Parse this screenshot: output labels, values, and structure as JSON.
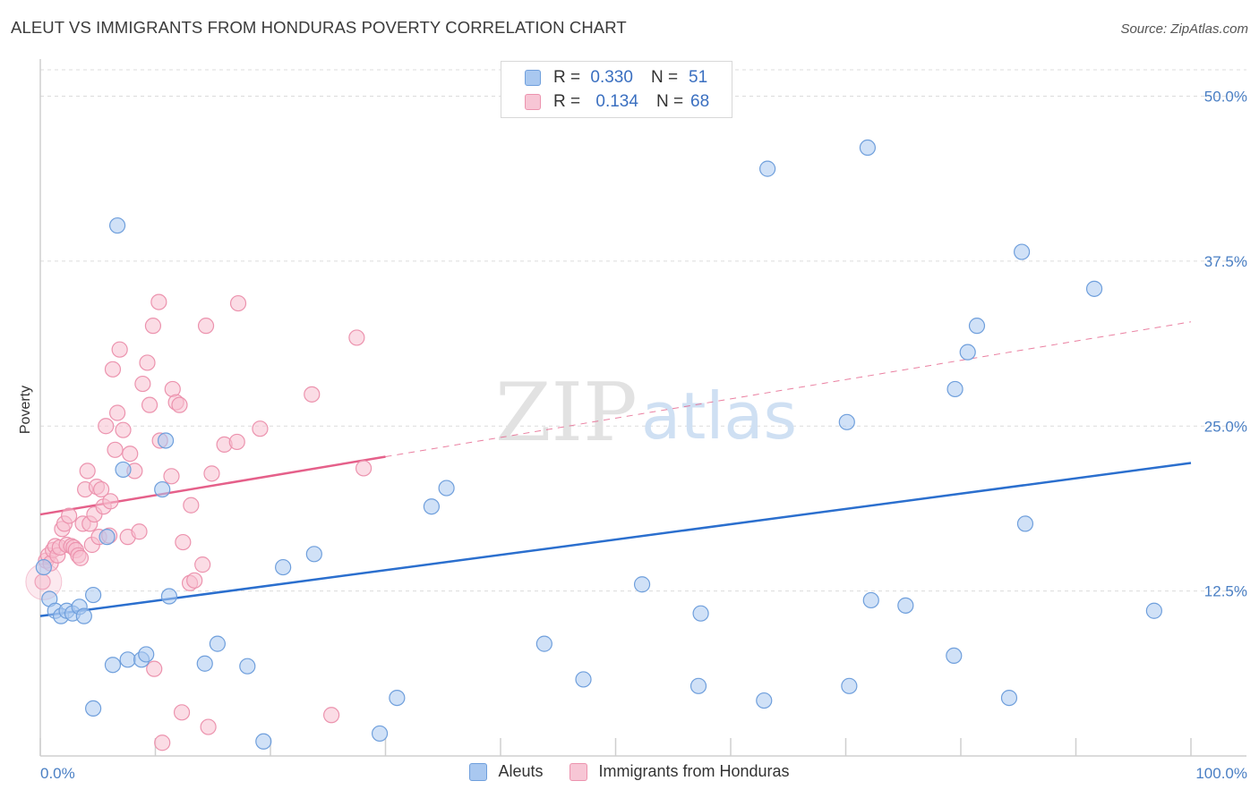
{
  "title": "ALEUT VS IMMIGRANTS FROM HONDURAS POVERTY CORRELATION CHART",
  "source": "Source: ZipAtlas.com",
  "watermark": {
    "part1": "ZIP",
    "part2": "atlas"
  },
  "legend": {
    "rows": [
      {
        "r_label": "R =",
        "r_value": "0.330",
        "n_label": "N =",
        "n_value": "51"
      },
      {
        "r_label": "R =",
        "r_value": "0.134",
        "n_label": "N =",
        "n_value": "68"
      }
    ]
  },
  "bottom_legend": {
    "series1": "Aleuts",
    "series2": "Immigrants from Honduras"
  },
  "colors": {
    "aleut_fill": "#a9c8f0",
    "aleut_stroke": "#6f9fdc",
    "aleut_line": "#2b6fce",
    "honduras_fill": "#f7bfd0",
    "honduras_stroke": "#ec93ae",
    "honduras_line": "#e5608a",
    "tick_text": "#4a7fc4",
    "grid": "#dcdcdc"
  },
  "chart_data": {
    "type": "scatter",
    "title": "ALEUT VS IMMIGRANTS FROM HONDURAS POVERTY CORRELATION CHART",
    "xlabel": "",
    "ylabel": "Poverty",
    "xlim": [
      0,
      100
    ],
    "ylim": [
      0,
      52
    ],
    "x_tick_labels": [
      "0.0%",
      "100.0%"
    ],
    "y_ticks": [
      12.5,
      25.0,
      37.5,
      50.0
    ],
    "y_tick_labels": [
      "12.5%",
      "25.0%",
      "37.5%",
      "50.0%"
    ],
    "grid": true,
    "legend_position": "top-center",
    "series": [
      {
        "name": "Aleuts",
        "r": 0.33,
        "n": 51,
        "trend": {
          "x0": 0,
          "y0": 10.6,
          "x1": 100,
          "y1": 22.2,
          "dashed_from": null
        },
        "points": [
          [
            0.3,
            14.3
          ],
          [
            0.8,
            11.9
          ],
          [
            1.3,
            11.0
          ],
          [
            1.8,
            10.6
          ],
          [
            2.3,
            11.0
          ],
          [
            2.8,
            10.8
          ],
          [
            3.4,
            11.3
          ],
          [
            3.8,
            10.6
          ],
          [
            4.6,
            12.2
          ],
          [
            4.6,
            3.6
          ],
          [
            5.8,
            16.6
          ],
          [
            6.3,
            6.9
          ],
          [
            6.7,
            40.2
          ],
          [
            7.2,
            21.7
          ],
          [
            7.6,
            7.3
          ],
          [
            8.8,
            7.3
          ],
          [
            9.2,
            7.7
          ],
          [
            10.6,
            20.2
          ],
          [
            10.9,
            23.9
          ],
          [
            11.2,
            12.1
          ],
          [
            14.3,
            7.0
          ],
          [
            15.4,
            8.5
          ],
          [
            18.0,
            6.8
          ],
          [
            19.4,
            1.1
          ],
          [
            21.1,
            14.3
          ],
          [
            23.8,
            15.3
          ],
          [
            29.5,
            1.7
          ],
          [
            31.0,
            4.4
          ],
          [
            34.0,
            18.9
          ],
          [
            35.3,
            20.3
          ],
          [
            43.8,
            8.5
          ],
          [
            47.2,
            5.8
          ],
          [
            52.3,
            13.0
          ],
          [
            57.2,
            5.3
          ],
          [
            57.4,
            10.8
          ],
          [
            62.9,
            4.2
          ],
          [
            63.2,
            44.5
          ],
          [
            70.1,
            25.3
          ],
          [
            70.3,
            5.3
          ],
          [
            71.9,
            46.1
          ],
          [
            72.2,
            11.8
          ],
          [
            75.2,
            11.4
          ],
          [
            79.4,
            7.6
          ],
          [
            79.5,
            27.8
          ],
          [
            80.6,
            30.6
          ],
          [
            81.4,
            32.6
          ],
          [
            84.2,
            4.4
          ],
          [
            85.3,
            38.2
          ],
          [
            85.6,
            17.6
          ],
          [
            91.6,
            35.4
          ],
          [
            96.8,
            11.0
          ]
        ]
      },
      {
        "name": "Immigrants from Honduras",
        "r": 0.134,
        "n": 68,
        "trend": {
          "x0": 0,
          "y0": 18.3,
          "x1": 100,
          "y1": 32.9,
          "solid_to_x": 30
        },
        "points": [
          [
            0.2,
            13.2
          ],
          [
            0.5,
            14.8
          ],
          [
            0.7,
            15.2
          ],
          [
            0.9,
            14.6
          ],
          [
            1.1,
            15.6
          ],
          [
            1.3,
            15.9
          ],
          [
            1.5,
            15.2
          ],
          [
            1.7,
            15.8
          ],
          [
            1.9,
            17.2
          ],
          [
            2.1,
            17.6
          ],
          [
            2.3,
            16.0
          ],
          [
            2.5,
            18.2
          ],
          [
            2.7,
            15.9
          ],
          [
            2.9,
            15.8
          ],
          [
            3.1,
            15.6
          ],
          [
            3.3,
            15.2
          ],
          [
            3.5,
            15.0
          ],
          [
            3.7,
            17.6
          ],
          [
            3.9,
            20.2
          ],
          [
            4.1,
            21.6
          ],
          [
            4.3,
            17.6
          ],
          [
            4.5,
            16.0
          ],
          [
            4.7,
            18.3
          ],
          [
            4.9,
            20.4
          ],
          [
            5.1,
            16.6
          ],
          [
            5.3,
            20.2
          ],
          [
            5.5,
            18.9
          ],
          [
            5.7,
            25.0
          ],
          [
            6.0,
            16.7
          ],
          [
            6.1,
            19.3
          ],
          [
            6.3,
            29.3
          ],
          [
            6.5,
            23.2
          ],
          [
            6.7,
            26.0
          ],
          [
            6.9,
            30.8
          ],
          [
            7.2,
            24.7
          ],
          [
            7.6,
            16.6
          ],
          [
            7.8,
            22.9
          ],
          [
            8.2,
            21.6
          ],
          [
            8.6,
            17.0
          ],
          [
            8.9,
            28.2
          ],
          [
            9.3,
            29.8
          ],
          [
            9.5,
            26.6
          ],
          [
            9.8,
            32.6
          ],
          [
            9.9,
            6.6
          ],
          [
            10.3,
            34.4
          ],
          [
            10.4,
            23.9
          ],
          [
            10.6,
            1.0
          ],
          [
            11.4,
            21.2
          ],
          [
            11.5,
            27.8
          ],
          [
            11.8,
            26.8
          ],
          [
            12.1,
            26.6
          ],
          [
            12.3,
            3.3
          ],
          [
            12.4,
            16.2
          ],
          [
            13.0,
            13.1
          ],
          [
            13.1,
            19.0
          ],
          [
            13.4,
            13.3
          ],
          [
            14.1,
            14.5
          ],
          [
            14.4,
            32.6
          ],
          [
            14.6,
            2.2
          ],
          [
            14.9,
            21.4
          ],
          [
            16.0,
            23.6
          ],
          [
            17.1,
            23.8
          ],
          [
            17.2,
            34.3
          ],
          [
            19.1,
            24.8
          ],
          [
            23.6,
            27.4
          ],
          [
            25.3,
            3.1
          ],
          [
            27.5,
            31.7
          ],
          [
            28.1,
            21.8
          ]
        ]
      }
    ]
  }
}
